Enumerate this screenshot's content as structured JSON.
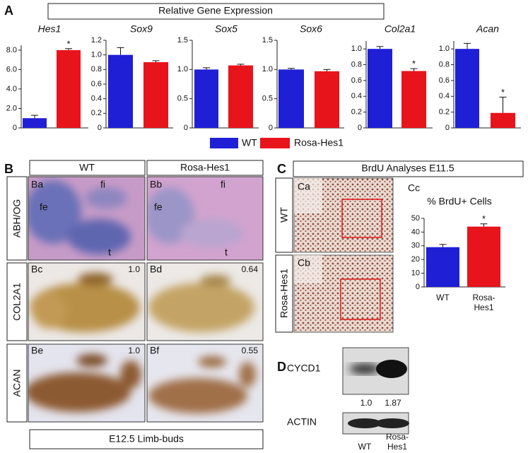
{
  "figure": {
    "panel_labels": [
      "A",
      "B",
      "C",
      "D"
    ],
    "A": {
      "header": "Relative Gene Expression",
      "legend": [
        {
          "name": "WT",
          "color": "#1f1fd6"
        },
        {
          "name": "Rosa-Hes1",
          "color": "#e8141c"
        }
      ]
    },
    "B": {
      "columns": [
        "WT",
        "Rosa-Hes1"
      ],
      "rows": [
        "ABH/OG",
        "COL2A1",
        "ACAN"
      ],
      "images": [
        {
          "label": "Ba",
          "regions": [
            "fe",
            "fi",
            "t"
          ]
        },
        {
          "label": "Bb",
          "regions": [
            "fe",
            "fi",
            "t"
          ]
        },
        {
          "label": "Bc",
          "value": "1.0"
        },
        {
          "label": "Bd",
          "value": "0.64"
        },
        {
          "label": "Be",
          "value": "1.0"
        },
        {
          "label": "Bf",
          "value": "0.55"
        }
      ],
      "footer": "E12.5 Limb-buds"
    },
    "C": {
      "title": "BrdU Analyses E11.5",
      "rows": [
        "WT",
        "Rosa-Hes1"
      ],
      "images": [
        "Ca",
        "Cb"
      ],
      "chart_label": "Cc"
    },
    "D": {
      "bands": [
        "CYCD1",
        "ACTIN"
      ],
      "quantification": [
        "1.0",
        "1.87"
      ],
      "lanes": [
        "WT",
        "Rosa-Hes1"
      ]
    }
  },
  "chart_data": [
    {
      "type": "bar",
      "title": "Hes1",
      "categories": [
        null,
        null
      ],
      "values": [
        1.0,
        8.0
      ],
      "errors": [
        0.3,
        0.15
      ],
      "significance": [
        null,
        "*"
      ],
      "colors": [
        "#1f1fd6",
        "#e8141c"
      ],
      "ylim": [
        0,
        8.5
      ],
      "yticks": [
        0,
        {
          "value": 2,
          "label": "2.0"
        },
        {
          "value": 4,
          "label": "4.0"
        },
        {
          "value": 6,
          "label": "6.0"
        },
        {
          "value": 8,
          "label": "8.0"
        }
      ]
    },
    {
      "type": "bar",
      "title": "Sox9",
      "categories": [
        null,
        null
      ],
      "values": [
        1.0,
        0.9
      ],
      "errors": [
        0.1,
        0.02
      ],
      "significance": [
        null,
        null
      ],
      "colors": [
        "#1f1fd6",
        "#e8141c"
      ],
      "ylim": [
        0,
        1.2
      ],
      "yticks": [
        0,
        0.2,
        0.4,
        0.6,
        0.8,
        {
          "value": 1,
          "label": "1.0"
        },
        1.2
      ]
    },
    {
      "type": "bar",
      "title": "Sox5",
      "categories": [
        null,
        null
      ],
      "values": [
        1.0,
        1.07
      ],
      "errors": [
        0.03,
        0.02
      ],
      "significance": [
        null,
        null
      ],
      "colors": [
        "#1f1fd6",
        "#e8141c"
      ],
      "ylim": [
        0,
        1.5
      ],
      "yticks": [
        0,
        0.5,
        {
          "value": 1,
          "label": "1.0"
        },
        1.5
      ]
    },
    {
      "type": "bar",
      "title": "Sox6",
      "categories": [
        null,
        null
      ],
      "values": [
        1.0,
        0.97
      ],
      "errors": [
        0.02,
        0.03
      ],
      "significance": [
        null,
        null
      ],
      "colors": [
        "#1f1fd6",
        "#e8141c"
      ],
      "ylim": [
        0,
        1.5
      ],
      "yticks": [
        0,
        0.5,
        {
          "value": 1,
          "label": "1.0"
        },
        1.5
      ]
    },
    {
      "type": "bar",
      "title": "Col2a1",
      "categories": [
        null,
        null
      ],
      "values": [
        1.0,
        0.72
      ],
      "errors": [
        0.03,
        0.03
      ],
      "significance": [
        null,
        "*"
      ],
      "colors": [
        "#1f1fd6",
        "#e8141c"
      ],
      "ylim": [
        0,
        1.1
      ],
      "yticks": [
        0,
        0.2,
        0.4,
        0.6,
        0.8,
        {
          "value": 1,
          "label": "1.0"
        }
      ]
    },
    {
      "type": "bar",
      "title": "Acan",
      "categories": [
        null,
        null
      ],
      "values": [
        1.0,
        0.19
      ],
      "errors": [
        0.07,
        0.2
      ],
      "significance": [
        null,
        "*"
      ],
      "colors": [
        "#1f1fd6",
        "#e8141c"
      ],
      "ylim": [
        0,
        1.1
      ],
      "yticks": [
        0,
        0.2,
        0.4,
        0.6,
        0.8,
        {
          "value": 1,
          "label": "1.0"
        }
      ]
    },
    {
      "type": "bar",
      "title": "% BrdU+ Cells",
      "categories": [
        "WT",
        "Rosa-Hes1"
      ],
      "values": [
        29,
        44
      ],
      "errors": [
        2,
        2
      ],
      "significance": [
        null,
        "*"
      ],
      "colors": [
        "#1f1fd6",
        "#e8141c"
      ],
      "ylim": [
        0,
        50
      ],
      "yticks": [
        0,
        10,
        20,
        30,
        40,
        50
      ]
    }
  ]
}
